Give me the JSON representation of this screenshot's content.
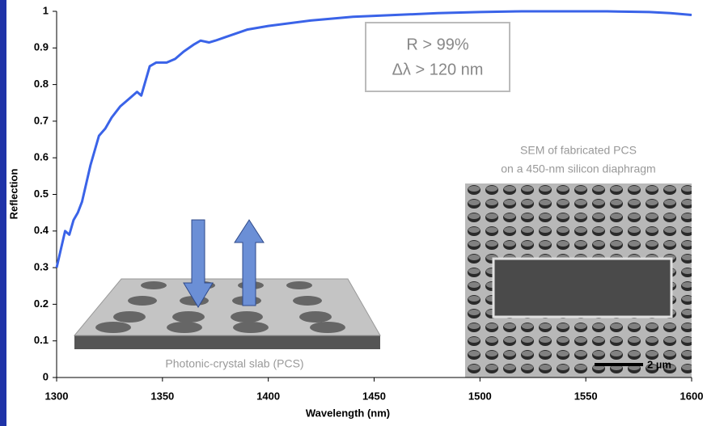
{
  "chart_data": {
    "type": "line",
    "x_label": "Wavelength (nm)",
    "y_label": "Reflection",
    "x": [
      1300,
      1302,
      1304,
      1306,
      1308,
      1310,
      1312,
      1314,
      1316,
      1318,
      1320,
      1323,
      1326,
      1330,
      1334,
      1338,
      1340,
      1342,
      1344,
      1347,
      1352,
      1356,
      1360,
      1365,
      1368,
      1372,
      1375,
      1380,
      1390,
      1400,
      1420,
      1440,
      1460,
      1480,
      1500,
      1520,
      1540,
      1560,
      1580,
      1590,
      1600
    ],
    "series": [
      {
        "name": "Reflection",
        "color": "#3a63e8",
        "values": [
          0.3,
          0.35,
          0.4,
          0.39,
          0.43,
          0.45,
          0.48,
          0.53,
          0.58,
          0.62,
          0.66,
          0.68,
          0.71,
          0.74,
          0.76,
          0.78,
          0.77,
          0.81,
          0.85,
          0.86,
          0.86,
          0.87,
          0.89,
          0.91,
          0.92,
          0.915,
          0.92,
          0.93,
          0.95,
          0.96,
          0.975,
          0.985,
          0.99,
          0.995,
          0.998,
          1.0,
          1.0,
          1.0,
          0.998,
          0.995,
          0.99
        ]
      }
    ],
    "xlim": [
      1300,
      1600
    ],
    "xticks": [
      1300,
      1350,
      1400,
      1450,
      1500,
      1550,
      1600
    ],
    "ylim": [
      0,
      1
    ],
    "yticks": [
      0,
      0.1,
      0.2,
      0.3,
      0.4,
      0.5,
      0.6,
      0.7,
      0.8,
      0.9,
      1
    ],
    "annotation": [
      "R > 99%",
      "Δλ > 120 nm"
    ],
    "sem_caption": [
      "SEM of fabricated PCS",
      "on a 450-nm silicon diaphragm"
    ],
    "scale_bar": "2 µm",
    "slab_label": "Photonic-crystal slab (PCS)"
  }
}
